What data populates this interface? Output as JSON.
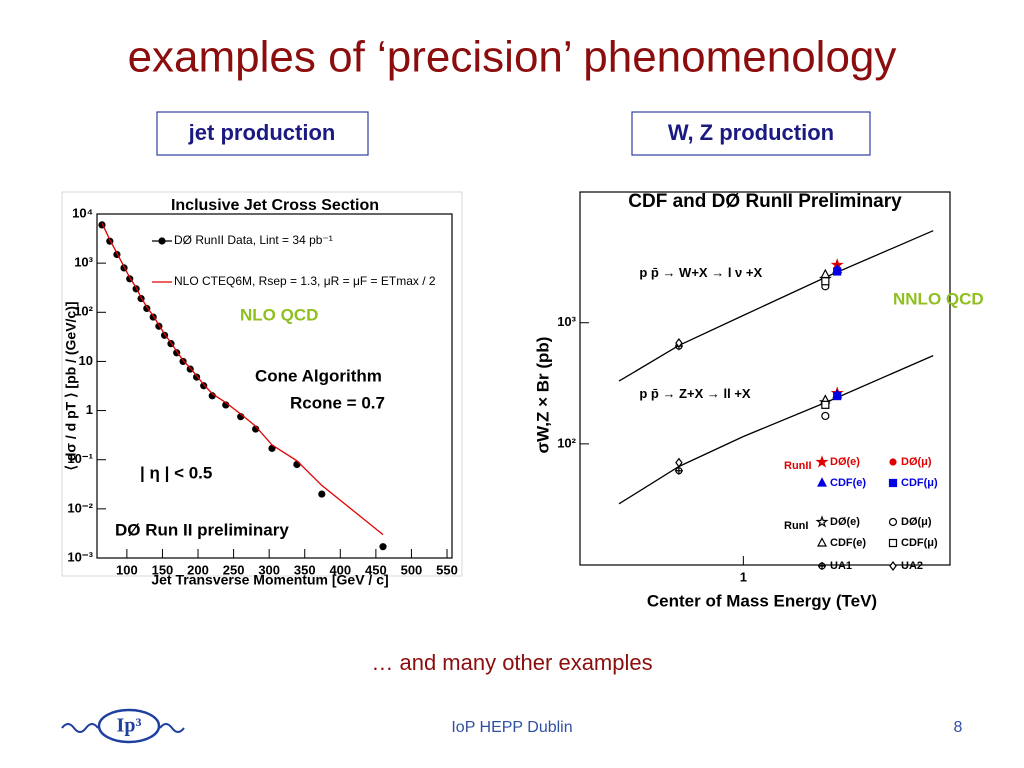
{
  "slide": {
    "title": "examples of ‘precision’ phenomenology",
    "left_heading": "jet production",
    "right_heading": "W, Z production",
    "note": "… and many other examples",
    "footer": "IoP HEPP Dublin",
    "page": "8",
    "logo": "Ip³"
  },
  "chart_data": [
    {
      "type": "line",
      "title": "Inclusive Jet Cross Section",
      "x_label": "Jet Transverse Momentum [GeV / c]",
      "y_label": "⟨ dσ / d pT ⟩ [pb / (GeV/c)]",
      "xlim": [
        58,
        557
      ],
      "ylim": [
        0.001,
        10000
      ],
      "ylog": true,
      "xticks": [
        100,
        150,
        200,
        250,
        300,
        350,
        400,
        450,
        500,
        550
      ],
      "yticks": [
        {
          "value": 0.001,
          "label": "10⁻³"
        },
        {
          "value": 0.01,
          "label": "10⁻²"
        },
        {
          "value": 0.1,
          "label": "10⁻¹"
        },
        1,
        10,
        {
          "value": 100,
          "label": "10²"
        },
        {
          "value": 1000,
          "label": "10³"
        },
        {
          "value": 10000,
          "label": "10⁴"
        }
      ],
      "legend": "upper left",
      "series": [
        {
          "name": "DØ RunII Data, Lint = 34 pb⁻¹",
          "color": "#000000",
          "marker": "dot",
          "x": [
            65,
            76,
            86,
            96,
            104,
            113,
            120,
            128,
            137,
            145,
            153,
            162,
            170,
            179,
            189,
            198,
            208,
            220,
            239,
            260,
            281,
            304,
            339,
            374,
            460
          ],
          "values": [
            6000,
            2800,
            1500,
            800,
            480,
            300,
            190,
            120,
            80,
            52,
            34,
            23,
            15,
            10,
            7,
            4.8,
            3.2,
            2.0,
            1.3,
            0.75,
            0.42,
            0.17,
            0.08,
            0.02,
            0.0017
          ]
        },
        {
          "name": "NLO CTEQ6M, Rsep = 1.3, μR = μF = ETmax / 2",
          "color": "#e00000",
          "style": "line",
          "x": [
            65,
            76,
            86,
            96,
            104,
            113,
            120,
            128,
            137,
            145,
            153,
            162,
            170,
            179,
            189,
            198,
            208,
            220,
            239,
            260,
            281,
            304,
            339,
            374,
            460
          ],
          "values": [
            6500,
            3000,
            1600,
            850,
            510,
            320,
            200,
            128,
            85,
            55,
            36,
            24,
            16,
            10.5,
            7.4,
            5.1,
            3.4,
            2.2,
            1.45,
            0.85,
            0.48,
            0.2,
            0.095,
            0.03,
            0.003
          ]
        }
      ],
      "annotations": [
        "NLO QCD",
        "Cone Algorithm",
        "Rcone = 0.7",
        "| η | < 0.5",
        "DØ Run II preliminary"
      ]
    },
    {
      "type": "line",
      "title": "CDF and DØ RunII Preliminary",
      "x_label": "Center of Mass Energy (TeV)",
      "y_label": "σW,Z × Br (pb)",
      "xlim": [
        0.31,
        4.4
      ],
      "xlog": true,
      "ylim": [
        10,
        12000
      ],
      "ylog": true,
      "xticks": [
        1
      ],
      "yticks": [
        {
          "value": 100,
          "label": "10²"
        },
        {
          "value": 1000,
          "label": "10³"
        }
      ],
      "legend": "lower right",
      "series": [
        {
          "label": "p p̄ → W+X → l ν +X",
          "color": "#000000",
          "style": "line",
          "x": [
            0.41,
            0.63,
            1.0,
            1.85,
            3.9
          ],
          "values": [
            330,
            650,
            1150,
            2450,
            5750
          ]
        },
        {
          "label": "p p̄ → Z+X → ll +X",
          "color": "#000000",
          "style": "line",
          "x": [
            0.41,
            0.63,
            1.0,
            1.85,
            3.9
          ],
          "values": [
            32,
            65,
            115,
            226,
            535
          ]
        },
        {
          "name": "DØ(e)",
          "group": "RunII",
          "color": "#e00000",
          "marker": "star",
          "x": [
            1.96,
            1.96
          ],
          "values": [
            3000,
            262
          ]
        },
        {
          "name": "DØ(μ)",
          "color": "#e00000",
          "marker": "dot",
          "x": [
            1.96,
            1.96
          ],
          "values": [
            2800,
            250
          ]
        },
        {
          "name": "CDF(e)",
          "color": "#0000e0",
          "marker": "triangle",
          "x": [
            1.96,
            1.96
          ],
          "values": [
            2750,
            255
          ]
        },
        {
          "name": "CDF(μ)",
          "color": "#0000e0",
          "marker": "square",
          "x": [
            1.96,
            1.96
          ],
          "values": [
            2650,
            248
          ]
        },
        {
          "name": "DØ(e)",
          "group": "RunI",
          "color": "#000000",
          "marker": "star-open",
          "x": [
            1.8,
            1.8
          ],
          "values": [
            2300,
            220
          ]
        },
        {
          "name": "DØ(μ)",
          "color": "#000000",
          "marker": "circle",
          "x": [
            1.8,
            1.8
          ],
          "values": [
            2000,
            170
          ]
        },
        {
          "name": "CDF(e)",
          "color": "#000000",
          "marker": "triangle-open",
          "x": [
            1.8,
            1.8
          ],
          "values": [
            2500,
            230
          ]
        },
        {
          "name": "CDF(μ)",
          "color": "#000000",
          "marker": "square-open",
          "x": [
            1.8,
            1.8
          ],
          "values": [
            2200,
            210
          ]
        },
        {
          "name": "UA1",
          "color": "#000000",
          "marker": "cross",
          "x": [
            0.63,
            0.63
          ],
          "values": [
            640,
            60
          ]
        },
        {
          "name": "UA2",
          "color": "#000000",
          "marker": "diamond",
          "x": [
            0.63,
            0.63
          ],
          "values": [
            680,
            70
          ]
        }
      ],
      "annotations": [
        "NNLO QCD"
      ]
    }
  ]
}
